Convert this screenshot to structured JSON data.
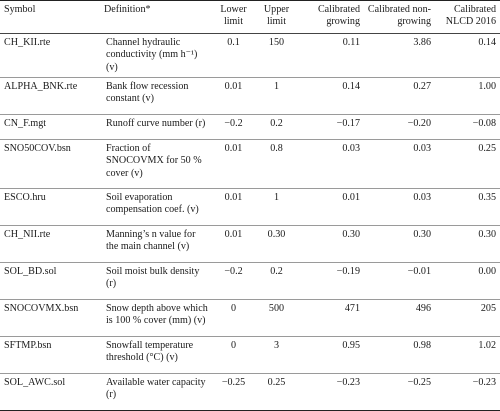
{
  "headers": {
    "symbol": "Symbol",
    "definition": "Definition*",
    "lower": "Lower limit",
    "upper": "Upper limit",
    "growing": "Calibrated growing",
    "nongrowing": "Calibrated non-growing",
    "nlcd": "Calibrated NLCD 2016"
  },
  "rows": [
    {
      "symbol": "CH_KII.rte",
      "definition": "Channel hydraulic conductivity (mm h⁻¹) (v)",
      "lower": "0.1",
      "upper": "150",
      "growing": "0.11",
      "nongrowing": "3.86",
      "nlcd": "0.14"
    },
    {
      "symbol": "ALPHA_BNK.rte",
      "definition": "Bank flow recession constant (v)",
      "lower": "0.01",
      "upper": "1",
      "growing": "0.14",
      "nongrowing": "0.27",
      "nlcd": "1.00"
    },
    {
      "symbol": "CN_F.mgt",
      "definition": "Runoff curve number (r)",
      "lower": "−0.2",
      "upper": "0.2",
      "growing": "−0.17",
      "nongrowing": "−0.20",
      "nlcd": "−0.08"
    },
    {
      "symbol": "SNO50COV.bsn",
      "definition": "Fraction of SNOCOVMX for 50 % cover (v)",
      "lower": "0.01",
      "upper": "0.8",
      "growing": "0.03",
      "nongrowing": "0.03",
      "nlcd": "0.25"
    },
    {
      "symbol": "ESCO.hru",
      "definition": "Soil evaporation compensation coef. (v)",
      "lower": "0.01",
      "upper": "1",
      "growing": "0.01",
      "nongrowing": "0.03",
      "nlcd": "0.35"
    },
    {
      "symbol": "CH_NII.rte",
      "definition": "Manning’s n value for the main channel (v)",
      "lower": "0.01",
      "upper": "0.30",
      "growing": "0.30",
      "nongrowing": "0.30",
      "nlcd": "0.30"
    },
    {
      "symbol": "SOL_BD.sol",
      "definition": "Soil moist bulk density (r)",
      "lower": "−0.2",
      "upper": "0.2",
      "growing": "−0.19",
      "nongrowing": "−0.01",
      "nlcd": "0.00"
    },
    {
      "symbol": "SNOCOVMX.bsn",
      "definition": "Snow depth above which is 100 % cover (mm) (v)",
      "lower": "0",
      "upper": "500",
      "growing": "471",
      "nongrowing": "496",
      "nlcd": "205"
    },
    {
      "symbol": "SFTMP.bsn",
      "definition": "Snowfall temperature threshold (°C) (v)",
      "lower": "0",
      "upper": "3",
      "growing": "0.95",
      "nongrowing": "0.98",
      "nlcd": "1.02"
    },
    {
      "symbol": "SOL_AWC.sol",
      "definition": "Available water capacity (r)",
      "lower": "−0.25",
      "upper": "0.25",
      "growing": "−0.23",
      "nongrowing": "−0.25",
      "nlcd": "−0.23"
    }
  ]
}
